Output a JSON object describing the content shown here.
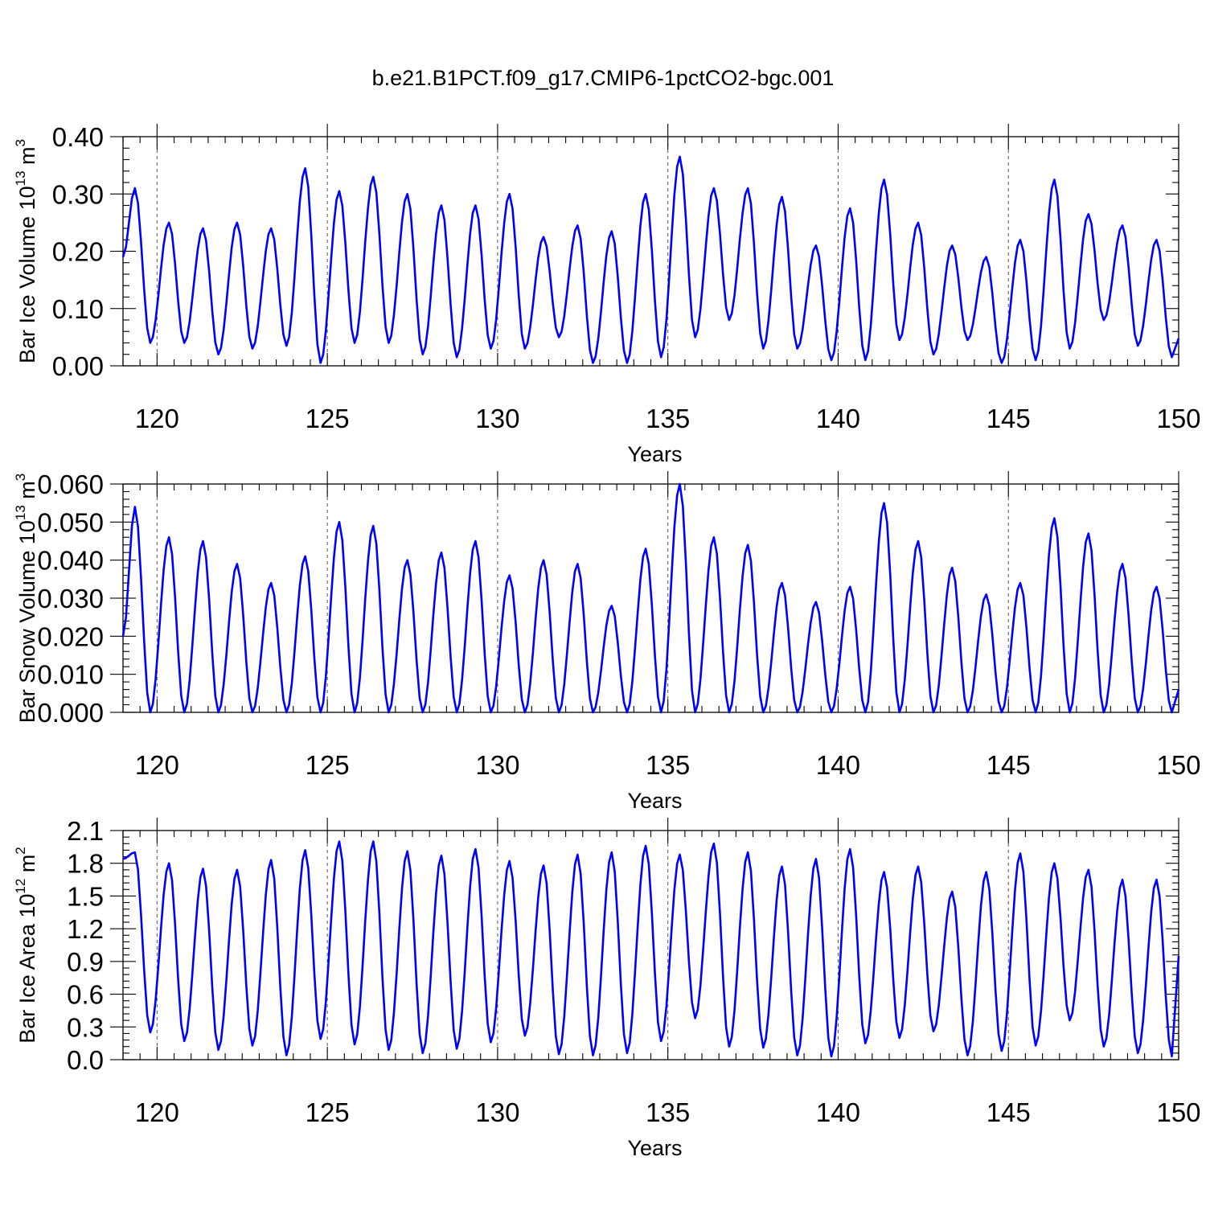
{
  "figure": {
    "title": "b.e21.B1PCT.f09_g17.CMIP6-1pctCO2-bgc.001"
  },
  "chart_data": [
    {
      "type": "line",
      "name": "ice-volume",
      "xlabel": "Years",
      "ylabel_main": "Bar Ice Volume 10",
      "ylabel_sup": "13",
      "ylabel_unit": " m",
      "ylabel_unit_sup": "3",
      "xlim": [
        119,
        150
      ],
      "ylim": [
        0,
        0.4
      ],
      "xticks": [
        120,
        125,
        130,
        135,
        140,
        145,
        150
      ],
      "yticks": [
        0,
        0.1,
        0.2,
        0.3,
        0.4
      ],
      "yticklabels": [
        "0.00",
        "0.10",
        "0.20",
        "0.30",
        "0.40"
      ],
      "grid_x": true,
      "color": "#0000ff",
      "cycles": [
        [
          0.04,
          0.31
        ],
        [
          0.04,
          0.25
        ],
        [
          0.02,
          0.24
        ],
        [
          0.03,
          0.25
        ],
        [
          0.035,
          0.24
        ],
        [
          0.005,
          0.345
        ],
        [
          0.04,
          0.305
        ],
        [
          0.04,
          0.33
        ],
        [
          0.02,
          0.3
        ],
        [
          0.015,
          0.28
        ],
        [
          0.03,
          0.28
        ],
        [
          0.03,
          0.3
        ],
        [
          0.05,
          0.225
        ],
        [
          0.005,
          0.245
        ],
        [
          0.005,
          0.235
        ],
        [
          0.015,
          0.3
        ],
        [
          0.05,
          0.365
        ],
        [
          0.08,
          0.31
        ],
        [
          0.03,
          0.31
        ],
        [
          0.03,
          0.295
        ],
        [
          0.01,
          0.21
        ],
        [
          0.01,
          0.275
        ],
        [
          0.045,
          0.325
        ],
        [
          0.02,
          0.25
        ],
        [
          0.045,
          0.21
        ],
        [
          0.005,
          0.19
        ],
        [
          0.01,
          0.22
        ],
        [
          0.03,
          0.325
        ],
        [
          0.08,
          0.265
        ],
        [
          0.035,
          0.245
        ],
        [
          0.015,
          0.22
        ]
      ],
      "start_value": 0.19,
      "end_value": 0.048
    },
    {
      "type": "line",
      "name": "snow-volume",
      "xlabel": "Years",
      "ylabel_main": "Bar Snow Volume 10",
      "ylabel_sup": "13",
      "ylabel_unit": " m",
      "ylabel_unit_sup": "3",
      "xlim": [
        119,
        150
      ],
      "ylim": [
        0,
        0.06
      ],
      "xticks": [
        120,
        125,
        130,
        135,
        140,
        145,
        150
      ],
      "yticks": [
        0,
        0.01,
        0.02,
        0.03,
        0.04,
        0.05,
        0.06
      ],
      "yticklabels": [
        "0.000",
        "0.010",
        "0.020",
        "0.030",
        "0.040",
        "0.050",
        "0.060"
      ],
      "grid_x": true,
      "color": "#0000ff",
      "cycles": [
        [
          0.0,
          0.054
        ],
        [
          0.0,
          0.046
        ],
        [
          0.0,
          0.045
        ],
        [
          0.0,
          0.039
        ],
        [
          0.0,
          0.034
        ],
        [
          0.0,
          0.041
        ],
        [
          0.0,
          0.05
        ],
        [
          0.0,
          0.049
        ],
        [
          0.0,
          0.04
        ],
        [
          0.0,
          0.042
        ],
        [
          0.0,
          0.045
        ],
        [
          0.0,
          0.036
        ],
        [
          0.0,
          0.04
        ],
        [
          0.0,
          0.039
        ],
        [
          0.0,
          0.028
        ],
        [
          0.0,
          0.043
        ],
        [
          0.0,
          0.06
        ],
        [
          0.0,
          0.046
        ],
        [
          0.0,
          0.044
        ],
        [
          0.0,
          0.034
        ],
        [
          0.0,
          0.029
        ],
        [
          0.0,
          0.033
        ],
        [
          0.0,
          0.055
        ],
        [
          0.0,
          0.045
        ],
        [
          0.0,
          0.038
        ],
        [
          0.0,
          0.031
        ],
        [
          0.0,
          0.034
        ],
        [
          0.0,
          0.051
        ],
        [
          0.0,
          0.047
        ],
        [
          0.0,
          0.039
        ],
        [
          0.0,
          0.033
        ]
      ],
      "start_value": 0.02,
      "end_value": 0.006
    },
    {
      "type": "line",
      "name": "ice-area",
      "xlabel": "Years",
      "ylabel_main": "Bar Ice Area 10",
      "ylabel_sup": "12",
      "ylabel_unit": " m",
      "ylabel_unit_sup": "2",
      "xlim": [
        119,
        150
      ],
      "ylim": [
        0,
        2.1
      ],
      "xticks": [
        120,
        125,
        130,
        135,
        140,
        145,
        150
      ],
      "yticks": [
        0,
        0.3,
        0.6,
        0.9,
        1.2,
        1.5,
        1.8,
        2.1
      ],
      "yticklabels": [
        "0.0",
        "0.3",
        "0.6",
        "0.9",
        "1.2",
        "1.5",
        "1.8",
        "2.1"
      ],
      "grid_x": true,
      "color": "#0000ff",
      "cycles": [
        [
          0.25,
          1.9
        ],
        [
          0.17,
          1.8
        ],
        [
          0.09,
          1.75
        ],
        [
          0.13,
          1.74
        ],
        [
          0.04,
          1.83
        ],
        [
          0.19,
          1.92
        ],
        [
          0.14,
          2.0
        ],
        [
          0.09,
          2.0
        ],
        [
          0.06,
          1.91
        ],
        [
          0.1,
          1.87
        ],
        [
          0.16,
          1.93
        ],
        [
          0.22,
          1.82
        ],
        [
          0.05,
          1.78
        ],
        [
          0.04,
          1.88
        ],
        [
          0.06,
          1.9
        ],
        [
          0.17,
          1.96
        ],
        [
          0.38,
          1.88
        ],
        [
          0.12,
          1.98
        ],
        [
          0.11,
          1.9
        ],
        [
          0.04,
          1.77
        ],
        [
          0.03,
          1.84
        ],
        [
          0.15,
          1.93
        ],
        [
          0.2,
          1.72
        ],
        [
          0.26,
          1.77
        ],
        [
          0.04,
          1.54
        ],
        [
          0.08,
          1.72
        ],
        [
          0.13,
          1.89
        ],
        [
          0.36,
          1.8
        ],
        [
          0.12,
          1.74
        ],
        [
          0.06,
          1.65
        ],
        [
          0.03,
          1.65
        ]
      ],
      "start_value": 1.84,
      "end_value": 0.95
    }
  ]
}
